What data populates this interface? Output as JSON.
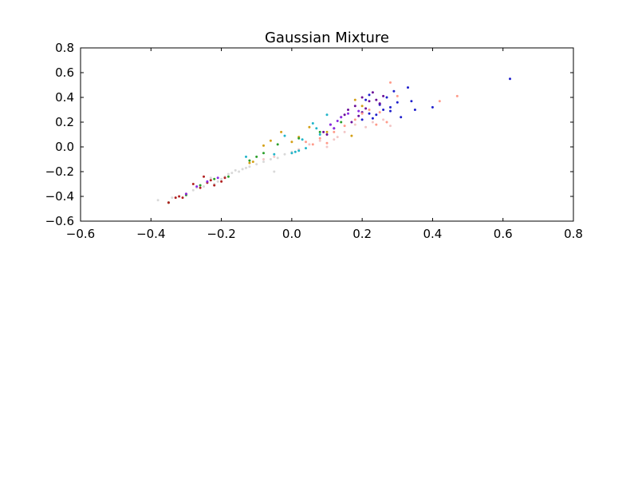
{
  "chart_data": {
    "type": "scatter",
    "title": "Gaussian Mixture",
    "xlabel": "",
    "ylabel": "",
    "xlim": [
      -0.6,
      0.8
    ],
    "ylim": [
      -0.6,
      0.8
    ],
    "xticks": [
      "−0.6",
      "−0.4",
      "−0.2",
      "0.0",
      "0.2",
      "0.4",
      "0.6",
      "0.8"
    ],
    "yticks": [
      "0.8",
      "0.6",
      "0.4",
      "0.2",
      "0.0",
      "−0.2",
      "−0.4",
      "−0.6"
    ],
    "grid": false,
    "series": [
      {
        "color": "#1f1fcc",
        "x": [
          0.62,
          0.33,
          0.34,
          0.35,
          0.4,
          0.3,
          0.27,
          0.28,
          0.25,
          0.22,
          0.23,
          0.2,
          0.24,
          0.29,
          0.26,
          0.21,
          0.22,
          0.31,
          0.25,
          0.28
        ],
        "y": [
          0.55,
          0.48,
          0.37,
          0.3,
          0.32,
          0.36,
          0.4,
          0.32,
          0.35,
          0.42,
          0.23,
          0.22,
          0.26,
          0.45,
          0.3,
          0.38,
          0.27,
          0.24,
          0.34,
          0.29
        ]
      },
      {
        "color": "#6b0f99",
        "x": [
          0.2,
          0.22,
          0.18,
          0.16,
          0.23,
          0.19,
          0.24,
          0.21,
          0.14,
          0.17,
          0.1,
          0.12,
          0.26,
          0.2,
          0.15,
          0.09,
          0.11,
          0.25
        ],
        "y": [
          0.4,
          0.37,
          0.33,
          0.3,
          0.44,
          0.25,
          0.38,
          0.31,
          0.24,
          0.2,
          0.1,
          0.15,
          0.41,
          0.28,
          0.26,
          0.12,
          0.18,
          0.35
        ]
      },
      {
        "color": "#ff9b8a",
        "x": [
          0.47,
          0.42,
          0.28,
          0.3,
          0.22,
          0.2,
          0.18,
          0.15,
          0.25,
          0.27,
          0.12,
          0.08,
          0.06,
          0.04,
          0.1,
          0.24
        ],
        "y": [
          0.41,
          0.37,
          0.52,
          0.41,
          0.3,
          0.27,
          0.22,
          0.17,
          0.28,
          0.2,
          0.12,
          0.07,
          0.02,
          0.04,
          0.03,
          0.18
        ]
      },
      {
        "color": "#f2c6c6",
        "x": [
          0.28,
          0.23,
          0.21,
          0.18,
          0.13,
          0.08,
          0.05,
          0.1,
          0.02,
          0.0,
          -0.05,
          -0.08,
          0.15,
          0.12,
          0.26
        ],
        "y": [
          0.17,
          0.2,
          0.16,
          0.18,
          0.08,
          0.05,
          0.02,
          0.0,
          -0.02,
          -0.05,
          -0.08,
          -0.1,
          0.12,
          0.06,
          0.22
        ]
      },
      {
        "color": "#d9d9d9",
        "x": [
          -0.38,
          -0.34,
          -0.3,
          -0.28,
          -0.25,
          -0.22,
          -0.2,
          -0.18,
          -0.17,
          -0.16,
          -0.15,
          -0.14,
          -0.13,
          -0.12,
          -0.1,
          -0.08,
          -0.06,
          -0.05,
          -0.04,
          -0.02,
          0.0,
          -0.19,
          -0.21,
          -0.23,
          -0.27
        ],
        "y": [
          -0.43,
          -0.41,
          -0.38,
          -0.35,
          -0.32,
          -0.3,
          -0.26,
          -0.22,
          -0.21,
          -0.19,
          -0.2,
          -0.18,
          -0.17,
          -0.16,
          -0.14,
          -0.12,
          -0.1,
          -0.2,
          -0.09,
          -0.06,
          -0.04,
          -0.24,
          -0.28,
          -0.25,
          -0.33
        ]
      },
      {
        "color": "#d4a017",
        "x": [
          -0.11,
          -0.08,
          -0.06,
          -0.03,
          0.0,
          0.05,
          0.1,
          0.17,
          0.18,
          0.2,
          0.02,
          -0.12
        ],
        "y": [
          -0.12,
          0.01,
          0.05,
          0.12,
          0.04,
          0.16,
          0.12,
          0.09,
          0.38,
          0.33,
          0.08,
          -0.13
        ]
      },
      {
        "color": "#21b5c9",
        "x": [
          0.0,
          0.02,
          0.04,
          0.06,
          0.08,
          0.1,
          0.07,
          -0.02,
          -0.05,
          -0.13,
          0.03,
          0.01
        ],
        "y": [
          -0.05,
          -0.03,
          -0.01,
          0.19,
          0.1,
          0.26,
          0.15,
          0.09,
          -0.06,
          -0.08,
          0.06,
          -0.04
        ]
      },
      {
        "color": "#2ca02c",
        "x": [
          -0.35,
          -0.3,
          -0.26,
          -0.22,
          -0.18,
          -0.12,
          -0.08,
          -0.04,
          0.02,
          0.08,
          0.14,
          -0.1
        ],
        "y": [
          -0.45,
          -0.39,
          -0.31,
          -0.26,
          -0.24,
          -0.11,
          -0.05,
          0.02,
          0.07,
          0.12,
          0.2,
          -0.08
        ]
      },
      {
        "color": "#b22222",
        "x": [
          -0.35,
          -0.32,
          -0.3,
          -0.28,
          -0.26,
          -0.24,
          -0.23,
          -0.22,
          -0.2,
          -0.25,
          -0.31,
          -0.33,
          -0.19
        ],
        "y": [
          -0.45,
          -0.4,
          -0.38,
          -0.3,
          -0.33,
          -0.29,
          -0.27,
          -0.31,
          -0.28,
          -0.24,
          -0.41,
          -0.41,
          -0.25
        ]
      },
      {
        "color": "#8a2be2",
        "x": [
          -0.3,
          -0.27,
          -0.24,
          -0.21,
          0.12,
          0.14,
          0.16,
          0.11,
          0.19,
          0.13
        ],
        "y": [
          -0.38,
          -0.32,
          -0.28,
          -0.25,
          0.15,
          0.24,
          0.27,
          0.18,
          0.29,
          0.21
        ]
      }
    ]
  }
}
